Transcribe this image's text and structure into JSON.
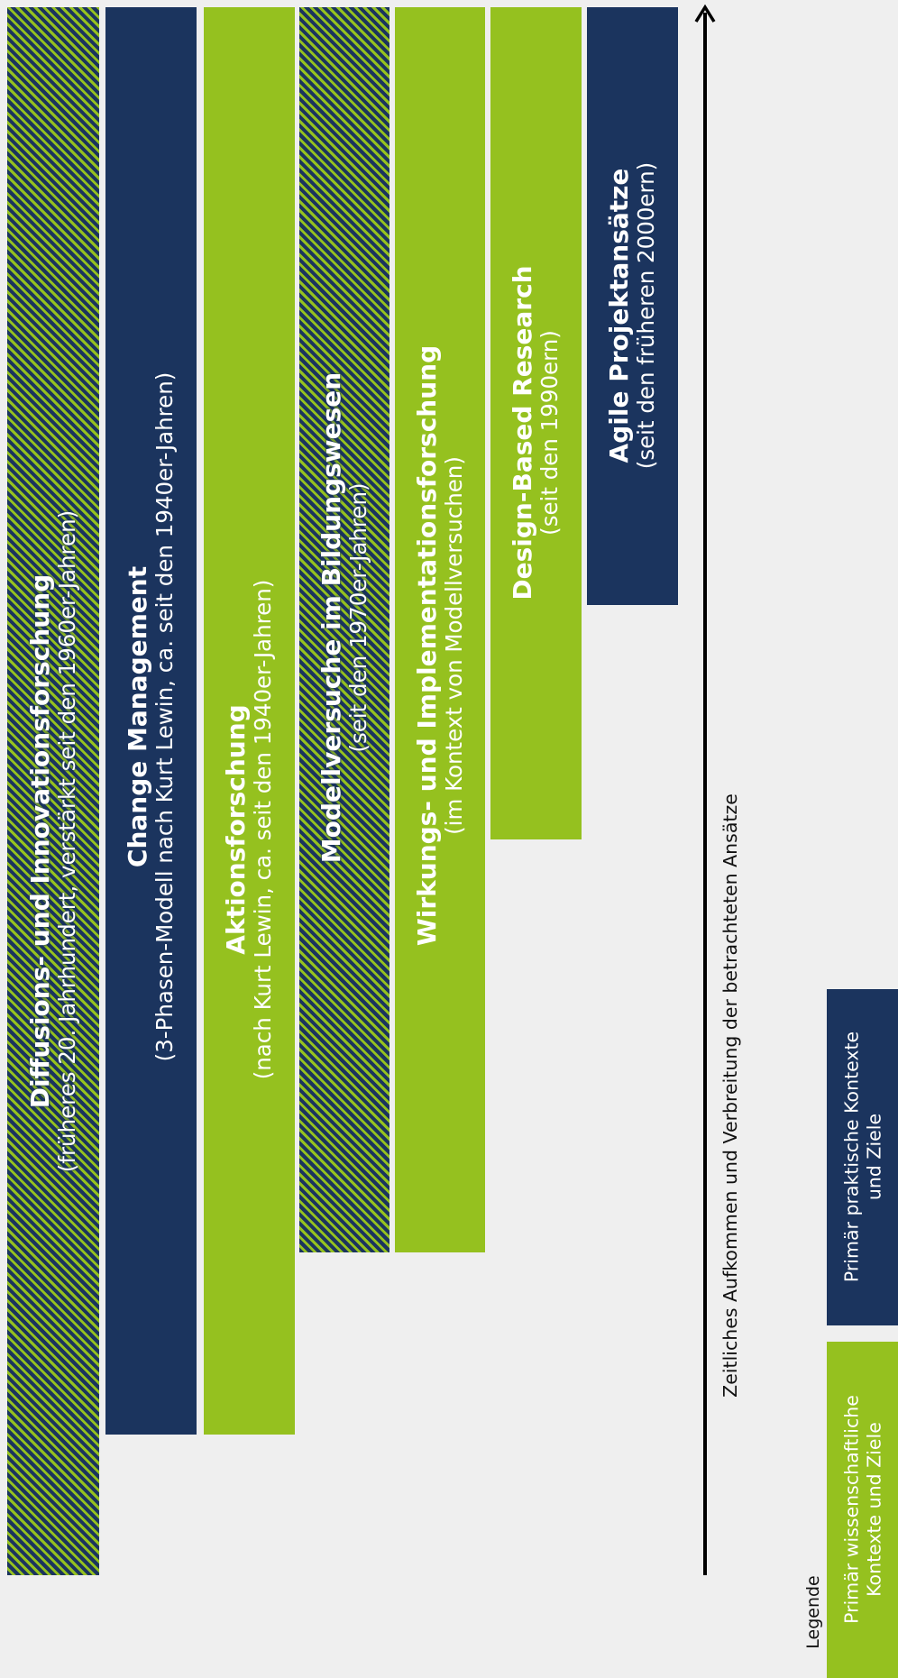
{
  "bars": [
    {
      "id": "diffusion",
      "title": "Diffusions- und Innovationsforschung",
      "subtitle": "(früheres 20. Jahrhundert, verstärkt seit den 1960er-Jahren)"
    },
    {
      "id": "change",
      "title": "Change Management",
      "subtitle": "(3-Phasen-Modell nach Kurt Lewin, ca. seit den 1940er-Jahren)"
    },
    {
      "id": "aktion",
      "title": "Aktionsforschung",
      "subtitle": "(nach Kurt Lewin, ca. seit den 1940er-Jahren)"
    },
    {
      "id": "modell",
      "title": "Modellversuche im Bildungswesen",
      "subtitle": "(seit den 1970er-Jahren)"
    },
    {
      "id": "wirkung",
      "title": "Wirkungs- und Implementationsforschung",
      "subtitle": "(im Kontext von Modellversuchen)"
    },
    {
      "id": "dbr",
      "title": "Design-Based Research",
      "subtitle": "(seit den 1990ern)"
    },
    {
      "id": "agile",
      "title": "Agile Projektansätze",
      "subtitle": "(seit den früheren 2000ern)"
    }
  ],
  "axis": {
    "label": "Zeitliches Aufkommen und Verbreitung der betrachteten Ansätze"
  },
  "legend": {
    "title": "Legende",
    "items": [
      {
        "line1": "Primär wissenschaftliche",
        "line2": "Kontexte und Ziele",
        "color": "#95c11f"
      },
      {
        "line1": "Primär praktische Kontexte",
        "line2": "und Ziele",
        "color": "#1b345e"
      }
    ]
  },
  "colors": {
    "green": "#95c11f",
    "navy": "#1b345e",
    "background": "#efefef"
  }
}
